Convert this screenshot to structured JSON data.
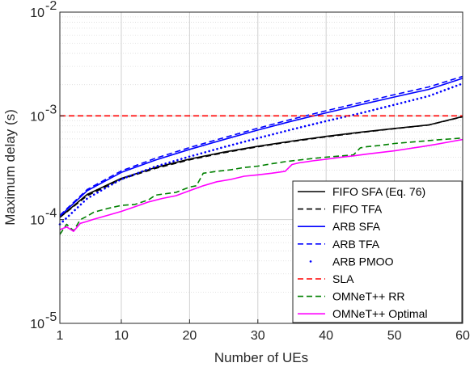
{
  "chart_data": {
    "type": "line",
    "xlabel": "Number of UEs",
    "ylabel": "Maximum delay (s)",
    "x_scale": "linear",
    "y_scale": "log",
    "xlim": [
      1,
      60
    ],
    "ylim": [
      1e-05,
      0.01
    ],
    "x_ticks": [
      "1",
      "10",
      "20",
      "30",
      "40",
      "50",
      "60"
    ],
    "x_tick_values": [
      1,
      10,
      20,
      30,
      40,
      50,
      60
    ],
    "y_ticks": [
      {
        "value": 0.01,
        "base": "10",
        "exp": "-2"
      },
      {
        "value": 0.001,
        "base": "10",
        "exp": "-3"
      },
      {
        "value": 0.0001,
        "base": "10",
        "exp": "-4"
      },
      {
        "value": 1e-05,
        "base": "10",
        "exp": "-5"
      }
    ],
    "grid": true,
    "minor_grid": true,
    "legend_placement": "bottom-right",
    "series": [
      {
        "name": "FIFO SFA (Eq. 76)",
        "color": "#000000",
        "style": "solid",
        "x": [
          1,
          5,
          10,
          15,
          20,
          25,
          30,
          35,
          40,
          45,
          50,
          55,
          60
        ],
        "y": [
          0.000105,
          0.000175,
          0.00025,
          0.000318,
          0.000383,
          0.000447,
          0.00051,
          0.000572,
          0.000634,
          0.000695,
          0.000756,
          0.000817,
          0.000985
        ]
      },
      {
        "name": "FIFO TFA",
        "color": "#000000",
        "style": "dash",
        "x": [
          1,
          5,
          10,
          15,
          20,
          25,
          30,
          35,
          40,
          45,
          50,
          55,
          60
        ],
        "y": [
          0.000105,
          0.00017,
          0.000245,
          0.000312,
          0.000377,
          0.000441,
          0.000503,
          0.000566,
          0.000628,
          0.00069,
          0.000752,
          0.000815,
          0.00098
        ]
      },
      {
        "name": "ARB SFA",
        "color": "#0000ff",
        "style": "solid",
        "x": [
          1,
          5,
          10,
          15,
          20,
          25,
          30,
          35,
          40,
          45,
          50,
          55,
          60
        ],
        "y": [
          0.000108,
          0.00019,
          0.000285,
          0.000375,
          0.000475,
          0.00059,
          0.00073,
          0.00089,
          0.00107,
          0.00128,
          0.00152,
          0.0018,
          0.0023
        ]
      },
      {
        "name": "ARB TFA",
        "color": "#0000ff",
        "style": "dash",
        "x": [
          1,
          5,
          10,
          15,
          20,
          25,
          30,
          35,
          40,
          45,
          50,
          55,
          60
        ],
        "y": [
          0.00011,
          0.000195,
          0.000295,
          0.00039,
          0.000495,
          0.000615,
          0.00076,
          0.00093,
          0.00112,
          0.00134,
          0.0016,
          0.0019,
          0.0024
        ]
      },
      {
        "name": "ARB PMOO",
        "color": "#0000ff",
        "style": "dot",
        "x": [
          1,
          5,
          10,
          15,
          20,
          25,
          30,
          35,
          40,
          45,
          50,
          55,
          60
        ],
        "y": [
          9e-05,
          0.00016,
          0.000245,
          0.000325,
          0.000405,
          0.0005,
          0.00061,
          0.00074,
          0.00089,
          0.00106,
          0.00128,
          0.00155,
          0.00205
        ]
      },
      {
        "name": "SLA",
        "color": "#ff0000",
        "style": "dash",
        "x": [
          1,
          60
        ],
        "y": [
          0.001,
          0.001
        ]
      },
      {
        "name": "OMNeT++ RR",
        "color": "#008000",
        "style": "dash",
        "x": [
          1,
          2,
          3,
          4,
          5,
          6,
          8,
          10,
          12,
          14,
          15,
          16,
          18,
          20,
          21,
          22,
          24,
          26,
          28,
          30,
          32,
          34,
          36,
          38,
          40,
          42,
          44,
          45,
          46,
          48,
          50,
          52,
          54,
          56,
          58,
          60
        ],
        "y": [
          7.2e-05,
          9e-05,
          7.8e-05,
          0.0001,
          0.000108,
          0.000118,
          0.000128,
          0.000137,
          0.00014,
          0.000155,
          0.000172,
          0.000176,
          0.000183,
          0.000206,
          0.000212,
          0.00028,
          0.000292,
          0.000302,
          0.000318,
          0.000328,
          0.000345,
          0.000362,
          0.000375,
          0.000388,
          0.0004,
          0.00041,
          0.00042,
          0.000492,
          0.000505,
          0.00052,
          0.000542,
          0.000555,
          0.00057,
          0.000585,
          0.000598,
          0.000612
        ]
      },
      {
        "name": "OMNeT++ Optimal",
        "color": "#ff00ff",
        "style": "solid",
        "x": [
          1,
          2,
          3,
          4,
          5,
          6,
          8,
          10,
          12,
          14,
          16,
          18,
          20,
          22,
          24,
          26,
          28,
          30,
          32,
          34,
          35,
          36,
          38,
          40,
          42,
          44,
          46,
          48,
          50,
          52,
          54,
          56,
          58,
          60
        ],
        "y": [
          8e-05,
          8.5e-05,
          7.7e-05,
          9.2e-05,
          9.6e-05,
          0.000101,
          0.00011,
          0.00012,
          0.000133,
          0.000148,
          0.00016,
          0.00017,
          0.00019,
          0.000212,
          0.000232,
          0.000244,
          0.000262,
          0.00027,
          0.00028,
          0.000292,
          0.00034,
          0.000352,
          0.000368,
          0.000382,
          0.000398,
          0.000412,
          0.000428,
          0.000444,
          0.00046,
          0.000482,
          0.000505,
          0.00053,
          0.00056,
          0.000592
        ]
      }
    ]
  }
}
